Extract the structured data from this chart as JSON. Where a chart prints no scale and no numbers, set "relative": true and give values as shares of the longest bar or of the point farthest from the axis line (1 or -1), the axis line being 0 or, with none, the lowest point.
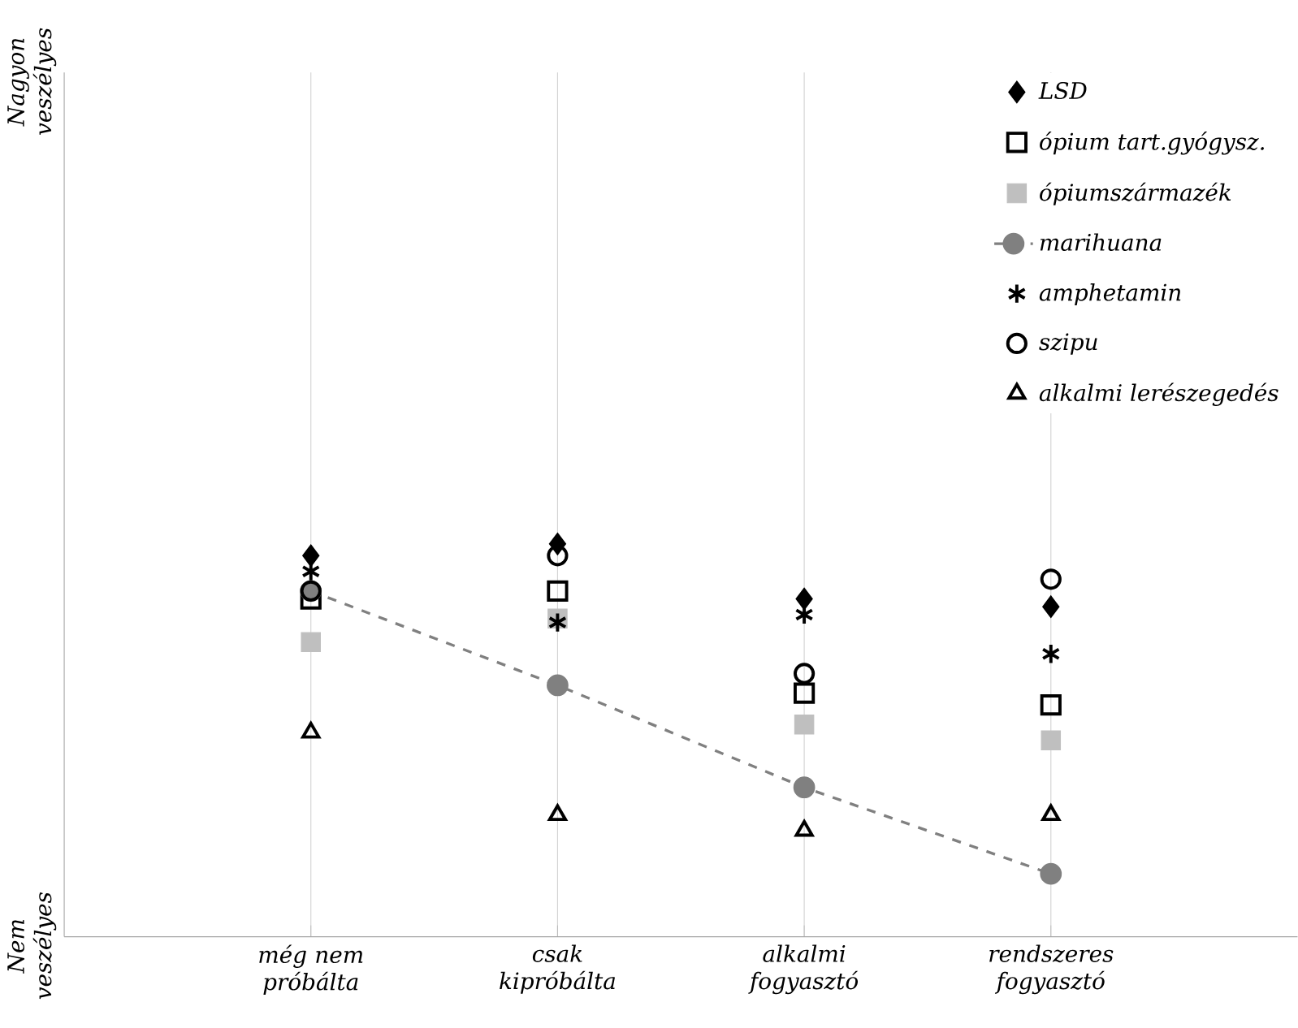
{
  "chart_data": {
    "type": "scatter",
    "categories": [
      "még nem próbálta",
      "csak kipróbálta",
      "alkalmi fogyasztó",
      "rendszeres fogyasztó"
    ],
    "relative": true,
    "annotations": [
      "Nagyon veszélyes",
      "Nem veszélyes"
    ],
    "grid": "x",
    "legend": "top right",
    "series": [
      {
        "name": "LSD",
        "color": "#000000",
        "marker": "diamond",
        "values": [
          0.97,
          1.0,
          0.86,
          0.84
        ]
      },
      {
        "name": "ópium tart.gyógysz.",
        "color": "#000000",
        "marker": "square",
        "values": [
          0.86,
          0.88,
          0.62,
          0.59
        ]
      },
      {
        "name": "ópiumszármazék",
        "color": "#bfbfbf",
        "marker": "square",
        "values": [
          0.75,
          0.81,
          0.54,
          0.5
        ]
      },
      {
        "name": "marihuana",
        "type": "line",
        "line_style": "dashed",
        "color": "#808080",
        "marker": "circle",
        "values": [
          0.88,
          0.64,
          0.38,
          0.16
        ]
      },
      {
        "name": "amphetamin",
        "color": "#000000",
        "marker": "cross",
        "values": [
          0.93,
          0.8,
          0.82,
          0.72
        ]
      },
      {
        "name": "szipu",
        "color": "#000000",
        "marker": "circle",
        "values": [
          0.88,
          0.97,
          0.67,
          0.91
        ]
      },
      {
        "name": "alkalmi lerészegedés",
        "color": "#000000",
        "marker": "triangle",
        "values": [
          0.52,
          0.31,
          0.27,
          0.31
        ]
      }
    ]
  }
}
